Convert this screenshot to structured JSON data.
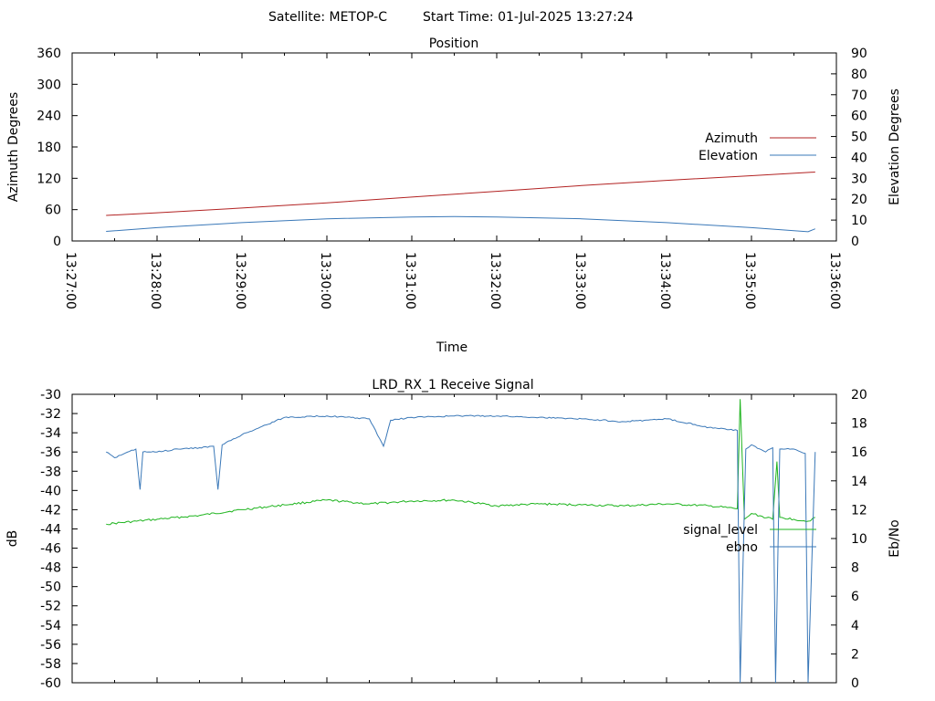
{
  "header": {
    "satellite": "Satellite: METOP-C",
    "start_time": "Start Time: 01-Jul-2025 13:27:24"
  },
  "colors": {
    "azimuth": "#b22222",
    "elevation": "#3a78b8",
    "signal_level": "#1eb41e",
    "ebno": "#3a78b8",
    "frame": "#000000"
  },
  "chart_data": [
    {
      "type": "line",
      "title": "Position",
      "xlabel": "Time",
      "ylabel": "Azimuth Degrees",
      "y2label": "Elevation Degrees",
      "xlim": [
        "13:27:00",
        "13:36:00"
      ],
      "ylim": [
        0,
        360
      ],
      "y2lim": [
        0,
        90
      ],
      "xticks": [
        "13:27:00",
        "13:28:00",
        "13:29:00",
        "13:30:00",
        "13:31:00",
        "13:32:00",
        "13:33:00",
        "13:34:00",
        "13:35:00",
        "13:36:00"
      ],
      "yticks": [
        0,
        60,
        120,
        180,
        240,
        300,
        360
      ],
      "y2ticks": [
        0,
        10,
        20,
        30,
        40,
        50,
        60,
        70,
        80,
        90
      ],
      "legend_position": "right",
      "series": [
        {
          "name": "Azimuth",
          "axis": "left",
          "x": [
            "13:27:24",
            "13:28:00",
            "13:29:00",
            "13:30:00",
            "13:31:00",
            "13:32:00",
            "13:33:00",
            "13:34:00",
            "13:35:00",
            "13:35:45"
          ],
          "values": [
            49,
            54,
            63,
            73,
            84,
            95,
            106,
            116,
            125,
            132
          ]
        },
        {
          "name": "Elevation",
          "axis": "right",
          "x": [
            "13:27:24",
            "13:28:00",
            "13:29:00",
            "13:30:00",
            "13:31:00",
            "13:31:30",
            "13:32:00",
            "13:33:00",
            "13:34:00",
            "13:35:00",
            "13:35:40",
            "13:35:45"
          ],
          "values": [
            4.6,
            6.4,
            8.8,
            10.6,
            11.5,
            11.7,
            11.5,
            10.6,
            8.8,
            6.4,
            4.4,
            5.8
          ]
        }
      ]
    },
    {
      "type": "line",
      "title": "LRD_RX_1 Receive Signal",
      "ylabel": "dB",
      "y2label": "Eb/No",
      "ylim": [
        -60,
        -30
      ],
      "y2lim": [
        0,
        20
      ],
      "yticks": [
        -30,
        -32,
        -34,
        -36,
        -38,
        -40,
        -42,
        -44,
        -46,
        -48,
        -50,
        -52,
        -54,
        -56,
        -58,
        -60
      ],
      "y2ticks": [
        20,
        18,
        16,
        14,
        12,
        10,
        8,
        6,
        4,
        2,
        0
      ],
      "legend_position": "right",
      "series": [
        {
          "name": "signal_level",
          "axis": "left",
          "x": [
            "13:27:24",
            "13:28:00",
            "13:28:30",
            "13:29:00",
            "13:29:30",
            "13:30:00",
            "13:30:30",
            "13:31:00",
            "13:31:30",
            "13:32:00",
            "13:32:30",
            "13:33:00",
            "13:33:30",
            "13:34:00",
            "13:34:30",
            "13:34:50",
            "13:34:52",
            "13:34:55",
            "13:35:00",
            "13:35:15",
            "13:35:18",
            "13:35:20",
            "13:35:30",
            "13:35:40",
            "13:35:45"
          ],
          "values": [
            -43.5,
            -43.0,
            -42.6,
            -42.0,
            -41.5,
            -41.0,
            -41.4,
            -41.1,
            -41.0,
            -41.6,
            -41.4,
            -41.5,
            -41.6,
            -41.4,
            -41.6,
            -41.9,
            -30.5,
            -43.0,
            -42.4,
            -43.0,
            -37.0,
            -42.8,
            -43.0,
            -43.2,
            -42.8
          ]
        },
        {
          "name": "ebno",
          "axis": "right",
          "x": [
            "13:27:24",
            "13:27:30",
            "13:27:45",
            "13:27:48",
            "13:27:50",
            "13:28:00",
            "13:28:15",
            "13:28:30",
            "13:28:40",
            "13:28:43",
            "13:28:46",
            "13:29:00",
            "13:29:30",
            "13:30:00",
            "13:30:30",
            "13:30:40",
            "13:30:45",
            "13:31:00",
            "13:31:30",
            "13:32:00",
            "13:32:30",
            "13:33:00",
            "13:33:30",
            "13:34:00",
            "13:34:30",
            "13:34:50",
            "13:34:52",
            "13:34:56",
            "13:35:00",
            "13:35:10",
            "13:35:15",
            "13:35:17",
            "13:35:20",
            "13:35:30",
            "13:35:38",
            "13:35:40",
            "13:35:45"
          ],
          "values": [
            16.0,
            15.6,
            16.2,
            13.4,
            16.0,
            16.0,
            16.2,
            16.3,
            16.4,
            13.4,
            16.5,
            17.2,
            18.4,
            18.5,
            18.3,
            16.4,
            18.2,
            18.4,
            18.5,
            18.5,
            18.4,
            18.3,
            18.1,
            18.3,
            17.7,
            17.5,
            0.0,
            16.2,
            16.5,
            16.0,
            16.3,
            0.0,
            16.2,
            16.2,
            15.9,
            0.0,
            16.0
          ]
        }
      ]
    }
  ]
}
